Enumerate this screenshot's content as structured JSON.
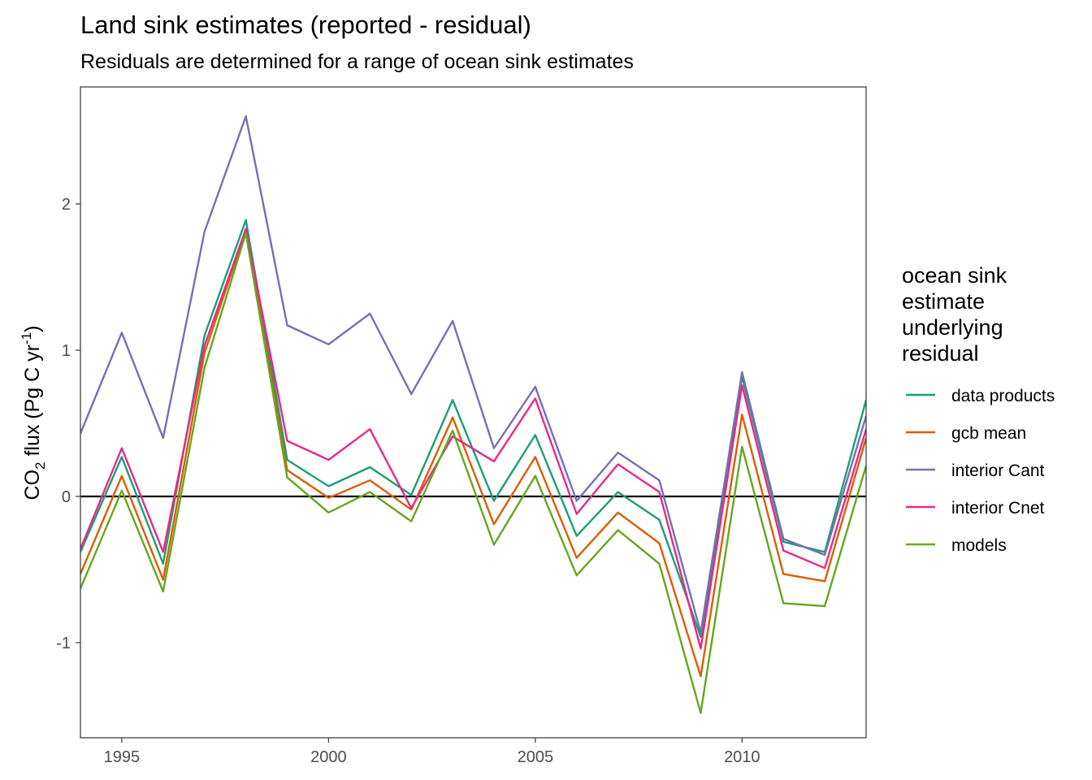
{
  "chart_data": {
    "type": "line",
    "title": "Land sink estimates (reported - residual)",
    "subtitle": "Residuals are determined for a range of ocean sink estimates",
    "xlabel": "",
    "ylabel": {
      "prefix": "CO",
      "sub": "2",
      "middle": " flux (Pg C yr",
      "sup": "-1",
      "suffix": ")"
    },
    "x": [
      1994,
      1995,
      1996,
      1997,
      1998,
      1999,
      2000,
      2001,
      2002,
      2003,
      2004,
      2005,
      2006,
      2007,
      2008,
      2009,
      2010,
      2011,
      2012,
      2013
    ],
    "xlim": [
      1994,
      2013
    ],
    "ylim": [
      -1.65,
      2.8
    ],
    "xticks": [
      1995,
      2000,
      2005,
      2010
    ],
    "xtick_labels": [
      "1995",
      "2000",
      "2005",
      "2010"
    ],
    "yticks": [
      -1,
      0,
      1,
      2
    ],
    "ytick_labels": [
      "-1",
      "0",
      "1",
      "2"
    ],
    "hline": 0,
    "grid": false,
    "legend": {
      "title_lines": [
        "ocean sink",
        "estimate",
        "underlying",
        "residual"
      ],
      "placement": "right"
    },
    "series": [
      {
        "name": "data products",
        "color": "#1b9e77",
        "values": [
          -0.38,
          0.27,
          -0.46,
          1.1,
          1.89,
          0.25,
          0.07,
          0.2,
          0.01,
          0.66,
          -0.03,
          0.42,
          -0.27,
          0.03,
          -0.16,
          -0.96,
          0.82,
          -0.31,
          -0.38,
          0.66
        ]
      },
      {
        "name": "gcb mean",
        "color": "#d95f02",
        "values": [
          -0.53,
          0.14,
          -0.57,
          0.98,
          1.82,
          0.18,
          -0.01,
          0.11,
          -0.09,
          0.54,
          -0.19,
          0.27,
          -0.42,
          -0.11,
          -0.32,
          -1.23,
          0.56,
          -0.53,
          -0.58,
          0.4
        ]
      },
      {
        "name": "interior Cant",
        "color": "#7570b3",
        "values": [
          0.43,
          1.12,
          0.4,
          1.81,
          2.6,
          1.17,
          1.04,
          1.25,
          0.7,
          1.2,
          0.33,
          0.75,
          -0.03,
          0.3,
          0.11,
          -0.93,
          0.85,
          -0.29,
          -0.4,
          0.55
        ]
      },
      {
        "name": "interior Cnet",
        "color": "#e7298a",
        "values": [
          -0.36,
          0.33,
          -0.38,
          1.03,
          1.83,
          0.38,
          0.25,
          0.46,
          -0.08,
          0.41,
          0.24,
          0.67,
          -0.12,
          0.22,
          0.03,
          -1.04,
          0.76,
          -0.37,
          -0.49,
          0.46
        ]
      },
      {
        "name": "models",
        "color": "#66a61e",
        "values": [
          -0.63,
          0.04,
          -0.65,
          0.88,
          1.8,
          0.13,
          -0.11,
          0.03,
          -0.17,
          0.45,
          -0.33,
          0.14,
          -0.54,
          -0.23,
          -0.46,
          -1.48,
          0.34,
          -0.73,
          -0.75,
          0.21
        ]
      }
    ]
  }
}
